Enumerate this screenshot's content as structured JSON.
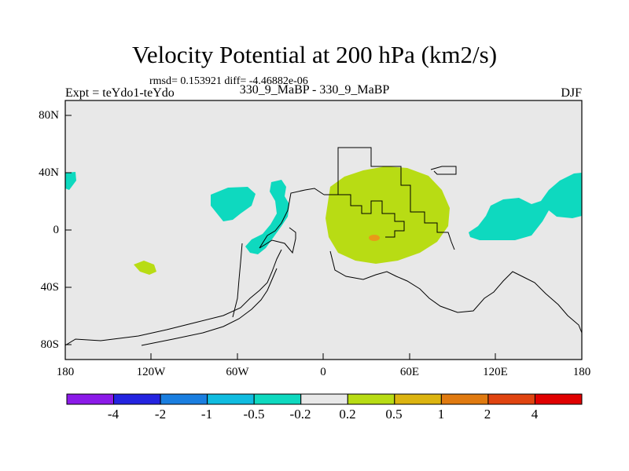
{
  "title": "Velocity Potential at 200 hPa (km2/s)",
  "stats": "rmsd= 0.153921 diff= -4.46882e-06",
  "experiment": "Expt = teYdo1-teYdo",
  "case": "330_9_MaBP - 330_9_MaBP",
  "season": "DJF",
  "lat_labels": [
    "80N",
    "40N",
    "0",
    "40S",
    "80S"
  ],
  "lon_labels": [
    "180",
    "120W",
    "60W",
    "0",
    "60E",
    "120E",
    "180"
  ],
  "colorbar": {
    "labels": [
      "-4",
      "-2",
      "-1",
      "-0.5",
      "-0.2",
      "0.2",
      "0.5",
      "1",
      "2",
      "4"
    ],
    "colors": [
      "#8b1ae8",
      "#2424e0",
      "#1a7ee0",
      "#10bce0",
      "#0ed9bf",
      "#e8e8e8",
      "#b8dc14",
      "#dcb410",
      "#e07a10",
      "#e04410",
      "#e00000"
    ]
  },
  "map_colors": {
    "background": "#e8e8e8",
    "negative": "#0ed9bf",
    "positive": "#b8dc14",
    "strong_positive": "#e89a18"
  }
}
